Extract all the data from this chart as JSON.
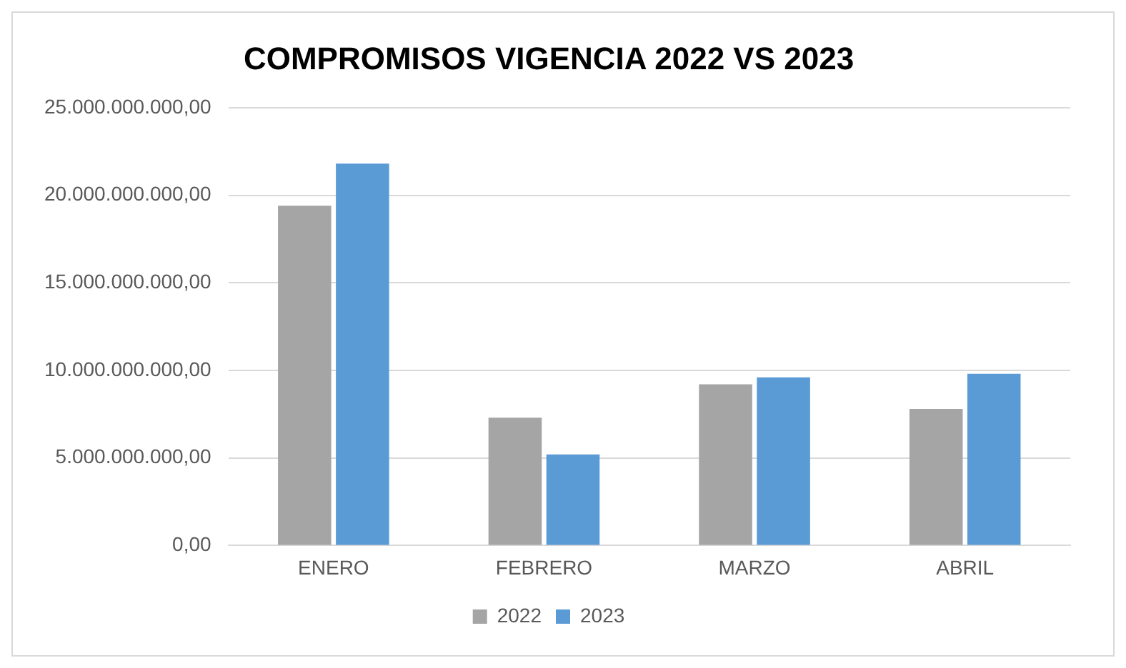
{
  "chart_data": {
    "type": "bar",
    "title": "COMPROMISOS VIGENCIA 2022 VS 2023",
    "categories": [
      "ENERO",
      "FEBRERO",
      "MARZO",
      "ABRIL"
    ],
    "series": [
      {
        "name": "2022",
        "color": "#a5a5a5",
        "values": [
          19400000000,
          7300000000,
          9200000000,
          7800000000
        ]
      },
      {
        "name": "2023",
        "color": "#5b9bd5",
        "values": [
          21800000000,
          5200000000,
          9600000000,
          9800000000
        ]
      }
    ],
    "ylim": [
      0,
      25000000000
    ],
    "yticks": [
      {
        "value": 0,
        "label": "0,00"
      },
      {
        "value": 5000000000,
        "label": "5.000.000.000,00"
      },
      {
        "value": 10000000000,
        "label": "10.000.000.000,00"
      },
      {
        "value": 15000000000,
        "label": "15.000.000.000,00"
      },
      {
        "value": 20000000000,
        "label": "20.000.000.000,00"
      },
      {
        "value": 25000000000,
        "label": "25.000.000.000,00"
      }
    ],
    "grid": "y",
    "legend": "bottom"
  }
}
